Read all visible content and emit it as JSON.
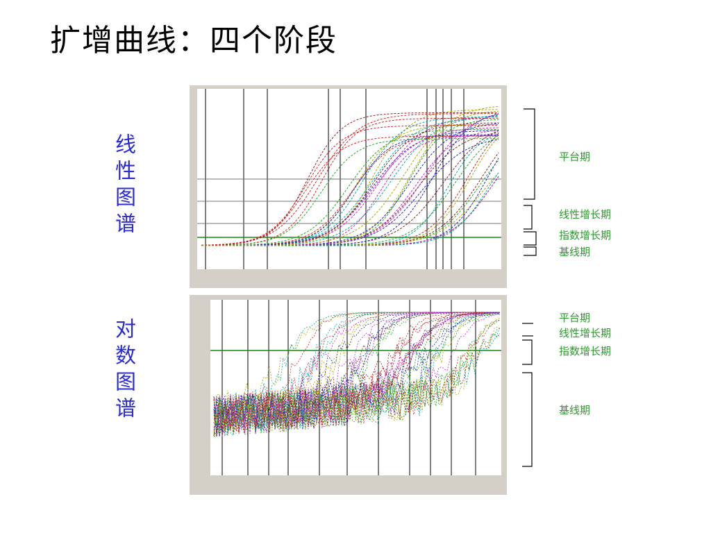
{
  "title": "扩增曲线：四个阶段",
  "panels": [
    {
      "label": "线性图谱",
      "phases": [
        "平台期",
        "线性增长期",
        "指数增长期",
        "基线期"
      ]
    },
    {
      "label": "对数图谱",
      "phases": [
        "平台期",
        "线性增长期",
        "指数增长期",
        "基线期"
      ]
    }
  ]
}
